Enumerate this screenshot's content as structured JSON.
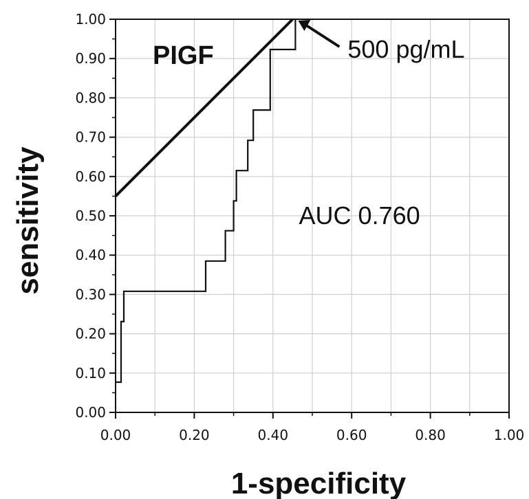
{
  "chart_data": {
    "type": "line",
    "title": "PIGF",
    "xlabel": "1-specificity",
    "ylabel": "sensitivity",
    "xlim": [
      0,
      1
    ],
    "ylim": [
      0,
      1
    ],
    "grid": true,
    "x_ticks": [
      "0.00",
      "0.20",
      "0.40",
      "0.60",
      "0.80",
      "1.00"
    ],
    "y_ticks": [
      "0.00",
      "0.10",
      "0.20",
      "0.30",
      "0.40",
      "0.50",
      "0.60",
      "0.70",
      "0.80",
      "0.90",
      "1.00"
    ],
    "series": [
      {
        "points": [
          [
            0.0,
            0.077
          ],
          [
            0.014,
            0.077
          ],
          [
            0.014,
            0.231
          ],
          [
            0.021,
            0.231
          ],
          [
            0.021,
            0.308
          ],
          [
            0.229,
            0.308
          ],
          [
            0.229,
            0.385
          ],
          [
            0.279,
            0.385
          ],
          [
            0.279,
            0.462
          ],
          [
            0.3,
            0.462
          ],
          [
            0.3,
            0.538
          ],
          [
            0.307,
            0.538
          ],
          [
            0.307,
            0.615
          ],
          [
            0.336,
            0.615
          ],
          [
            0.336,
            0.692
          ],
          [
            0.35,
            0.692
          ],
          [
            0.35,
            0.769
          ],
          [
            0.393,
            0.769
          ],
          [
            0.393,
            0.923
          ],
          [
            0.457,
            0.923
          ],
          [
            0.457,
            1.0
          ]
        ]
      },
      {
        "points": [
          [
            0.0,
            0.55
          ],
          [
            0.45,
            1.0
          ]
        ]
      }
    ],
    "annotations": [
      {
        "text": "500 pg/mL",
        "x": 0.457,
        "y": 1.0
      },
      {
        "text": "AUC 0.760"
      }
    ],
    "colors": {
      "line": "#111111",
      "grid": "#cfcfcf"
    }
  }
}
